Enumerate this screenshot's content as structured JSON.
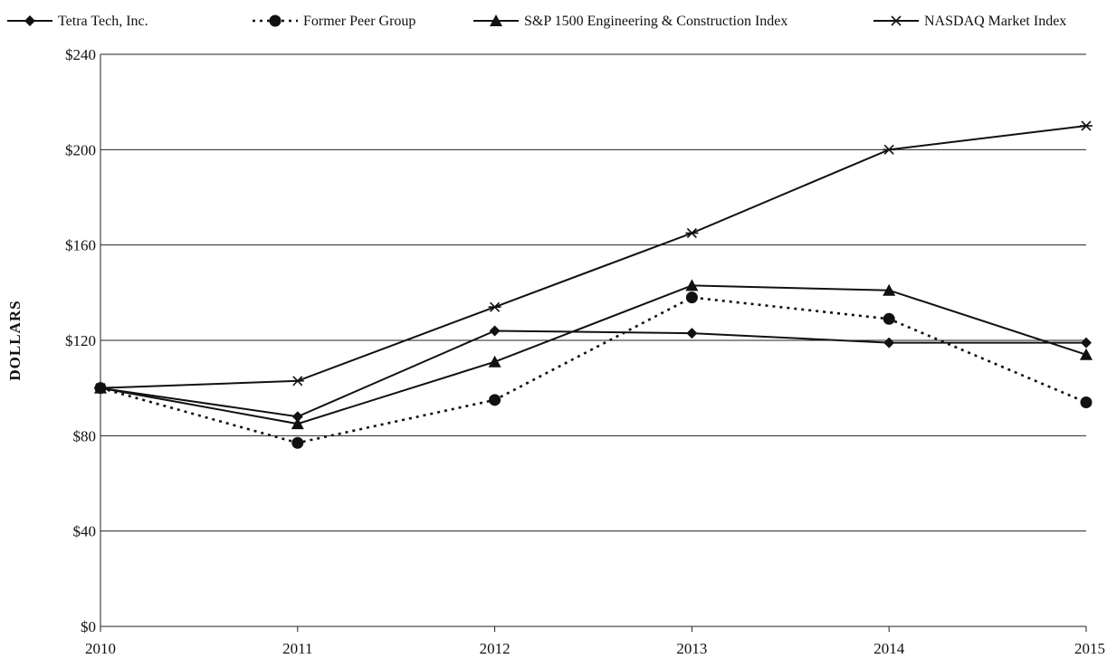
{
  "chart_data": {
    "type": "line",
    "title": "",
    "xlabel": "",
    "ylabel": "DOLLARS",
    "x": [
      "2010",
      "2011",
      "2012",
      "2013",
      "2014",
      "2015"
    ],
    "ylim": [
      0,
      240
    ],
    "yticks": [
      "$0",
      "$40",
      "$80",
      "$120",
      "$160",
      "$200",
      "$240"
    ],
    "ytick_values": [
      0,
      40,
      80,
      120,
      160,
      200,
      240
    ],
    "grid": true,
    "legend_position": "top",
    "series": [
      {
        "name": "Tetra Tech, Inc.",
        "marker": "diamond",
        "dash": "solid",
        "values": [
          100,
          88,
          124,
          123,
          119,
          119
        ],
        "color": "#111111"
      },
      {
        "name": "Former Peer Group",
        "marker": "circle",
        "dash": "dotted",
        "values": [
          100,
          77,
          95,
          138,
          129,
          94
        ],
        "color": "#111111"
      },
      {
        "name": "S&P 1500 Engineering & Construction Index",
        "marker": "triangle",
        "dash": "solid",
        "values": [
          100,
          85,
          111,
          143,
          141,
          114
        ],
        "color": "#111111"
      },
      {
        "name": "NASDAQ Market Index",
        "marker": "star",
        "dash": "solid",
        "values": [
          100,
          103,
          134,
          165,
          200,
          210
        ],
        "color": "#111111"
      }
    ]
  }
}
